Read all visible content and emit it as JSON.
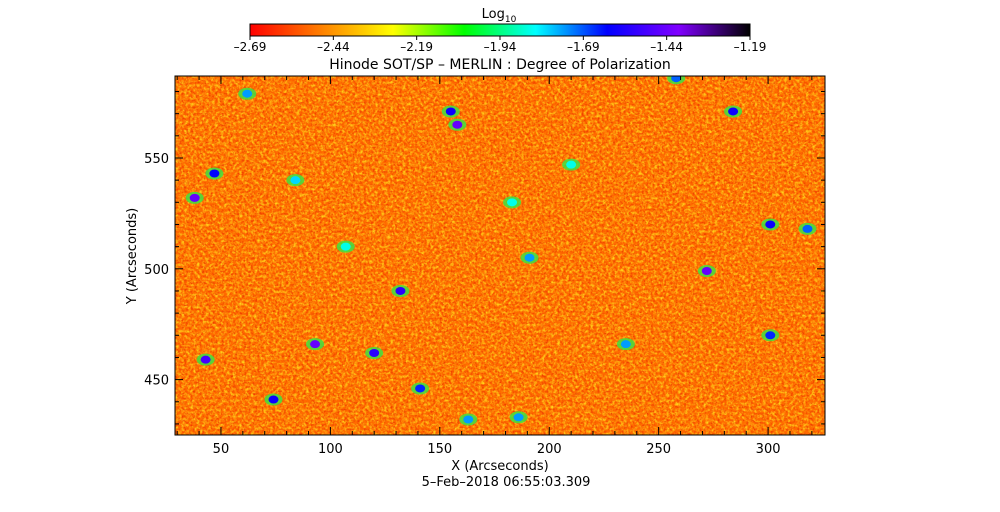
{
  "chart_data": {
    "type": "heatmap",
    "title": "Hinode SOT/SP – MERLIN : Degree of Polarization",
    "xlabel": "X (Arcseconds)",
    "ylabel": "Y (Arcseconds)",
    "footer": "5–Feb–2018 06:55:03.309",
    "xlim": [
      29,
      326
    ],
    "ylim": [
      425,
      587
    ],
    "x_ticks": [
      50,
      100,
      150,
      200,
      250,
      300
    ],
    "y_ticks": [
      450,
      500,
      550
    ],
    "colorbar": {
      "title_base": "Log",
      "title_sub": "10",
      "range": [
        -2.69,
        -1.19
      ],
      "tick_labels": [
        "–2.69",
        "–2.44",
        "–2.19",
        "–1.94",
        "–1.69",
        "–1.44",
        "–1.19"
      ],
      "colors": [
        "#ff0000",
        "#ff8000",
        "#ffff00",
        "#00ff00",
        "#00ffff",
        "#0000ff",
        "#8000ff",
        "#000000"
      ]
    },
    "field_description_value_range": [
      -2.69,
      -1.19
    ],
    "field_typical_value": -2.55,
    "patches": [
      {
        "x": 38,
        "y": 532,
        "v": -1.45
      },
      {
        "x": 47,
        "y": 543,
        "v": -1.62
      },
      {
        "x": 43,
        "y": 459,
        "v": -1.5
      },
      {
        "x": 93,
        "y": 466,
        "v": -1.45
      },
      {
        "x": 74,
        "y": 441,
        "v": -1.6
      },
      {
        "x": 132,
        "y": 490,
        "v": -1.55
      },
      {
        "x": 158,
        "y": 565,
        "v": -1.45
      },
      {
        "x": 155,
        "y": 571,
        "v": -1.6
      },
      {
        "x": 183,
        "y": 530,
        "v": -1.85
      },
      {
        "x": 191,
        "y": 505,
        "v": -1.75
      },
      {
        "x": 210,
        "y": 547,
        "v": -1.85
      },
      {
        "x": 272,
        "y": 499,
        "v": -1.45
      },
      {
        "x": 301,
        "y": 520,
        "v": -1.6
      },
      {
        "x": 318,
        "y": 518,
        "v": -1.7
      },
      {
        "x": 163,
        "y": 432,
        "v": -1.75
      },
      {
        "x": 186,
        "y": 433,
        "v": -1.75
      },
      {
        "x": 120,
        "y": 462,
        "v": -1.55
      },
      {
        "x": 141,
        "y": 446,
        "v": -1.65
      },
      {
        "x": 258,
        "y": 586,
        "v": -1.7
      },
      {
        "x": 301,
        "y": 470,
        "v": -1.65
      },
      {
        "x": 84,
        "y": 540,
        "v": -1.8
      },
      {
        "x": 235,
        "y": 466,
        "v": -1.75
      },
      {
        "x": 284,
        "y": 571,
        "v": -1.6
      },
      {
        "x": 62,
        "y": 579,
        "v": -1.75
      },
      {
        "x": 107,
        "y": 510,
        "v": -1.85
      }
    ]
  }
}
